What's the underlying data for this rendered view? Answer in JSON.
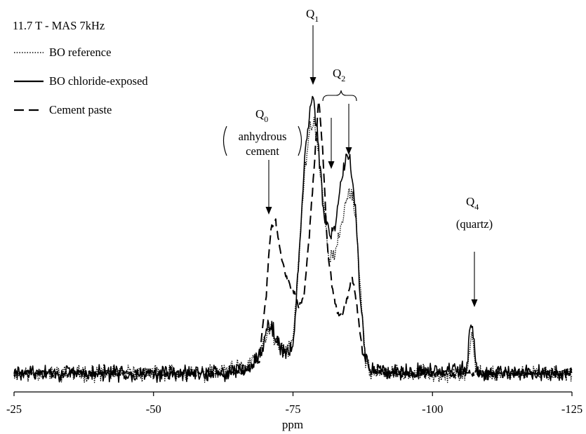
{
  "chart_data": {
    "type": "line",
    "title": "",
    "xlabel": "ppm",
    "ylabel": "",
    "x_axis_reversed": true,
    "xlim": [
      -25,
      -125
    ],
    "ylim": [
      0,
      100
    ],
    "x_ticks": [
      -25,
      -50,
      -75,
      -100,
      -125
    ],
    "x_tick_labels": [
      "-25",
      "-50",
      "-75",
      "-100",
      "-125"
    ],
    "legend_placement": "top-left",
    "legend_header": "11.7 T - MAS 7kHz",
    "noise_amplitude": 2.2,
    "series": [
      {
        "name": "BO reference",
        "line_style": "dotted",
        "color": "#000000",
        "points": [
          [
            -25,
            3
          ],
          [
            -60,
            3
          ],
          [
            -66,
            5
          ],
          [
            -69,
            9
          ],
          [
            -70.5,
            17
          ],
          [
            -71,
            19
          ],
          [
            -71.6,
            15
          ],
          [
            -72.5,
            12
          ],
          [
            -73.5,
            10
          ],
          [
            -75,
            14
          ],
          [
            -76,
            40
          ],
          [
            -77,
            70
          ],
          [
            -78,
            87
          ],
          [
            -78.8,
            89
          ],
          [
            -79.5,
            80
          ],
          [
            -80.5,
            60
          ],
          [
            -81.5,
            43
          ],
          [
            -82.5,
            43
          ],
          [
            -83.5,
            52
          ],
          [
            -84.5,
            62
          ],
          [
            -85.5,
            66
          ],
          [
            -86.3,
            56
          ],
          [
            -87.2,
            28
          ],
          [
            -88,
            8
          ],
          [
            -89,
            3
          ],
          [
            -106,
            3
          ],
          [
            -106.7,
            10
          ],
          [
            -107,
            16
          ],
          [
            -107.4,
            10
          ],
          [
            -108,
            3
          ],
          [
            -125,
            3
          ]
        ]
      },
      {
        "name": "BO chloride-exposed",
        "line_style": "solid",
        "color": "#000000",
        "points": [
          [
            -25,
            3
          ],
          [
            -62,
            3
          ],
          [
            -67,
            5
          ],
          [
            -69.5,
            11
          ],
          [
            -70.5,
            19
          ],
          [
            -71,
            21
          ],
          [
            -71.6,
            17
          ],
          [
            -72.5,
            12
          ],
          [
            -73.5,
            10
          ],
          [
            -75,
            12
          ],
          [
            -76,
            40
          ],
          [
            -77,
            75
          ],
          [
            -78,
            93
          ],
          [
            -78.6,
            98
          ],
          [
            -79.3,
            86
          ],
          [
            -80.5,
            58
          ],
          [
            -81.5,
            50
          ],
          [
            -82.5,
            52
          ],
          [
            -83.5,
            68
          ],
          [
            -84.5,
            77
          ],
          [
            -85.3,
            76
          ],
          [
            -86.2,
            60
          ],
          [
            -87,
            30
          ],
          [
            -88,
            9
          ],
          [
            -89,
            4
          ],
          [
            -106.2,
            4
          ],
          [
            -106.6,
            16
          ],
          [
            -107,
            22
          ],
          [
            -107.4,
            14
          ],
          [
            -108,
            3
          ],
          [
            -125,
            3
          ]
        ]
      },
      {
        "name": "Cement paste",
        "line_style": "dashed",
        "color": "#000000",
        "points": [
          [
            -25,
            3
          ],
          [
            -66,
            3
          ],
          [
            -69,
            8
          ],
          [
            -70.2,
            30
          ],
          [
            -71,
            52
          ],
          [
            -71.8,
            56
          ],
          [
            -72.5,
            48
          ],
          [
            -73.2,
            40
          ],
          [
            -74.2,
            34
          ],
          [
            -75.2,
            30
          ],
          [
            -76,
            26
          ],
          [
            -77,
            30
          ],
          [
            -78,
            52
          ],
          [
            -79,
            80
          ],
          [
            -79.6,
            97
          ],
          [
            -80.3,
            80
          ],
          [
            -81.2,
            45
          ],
          [
            -82.2,
            30
          ],
          [
            -83.2,
            23
          ],
          [
            -84,
            24
          ],
          [
            -84.8,
            30
          ],
          [
            -85.6,
            36
          ],
          [
            -86.5,
            25
          ],
          [
            -87.5,
            10
          ],
          [
            -89,
            3
          ],
          [
            -125,
            3
          ]
        ]
      }
    ],
    "annotations": [
      {
        "label": "Q",
        "sub": "0"
      },
      {
        "label": "anhydrous"
      },
      {
        "label": "cement"
      },
      {
        "label": "Q",
        "sub": "1"
      },
      {
        "label": "Q",
        "sub": "2"
      },
      {
        "label": "Q",
        "sub": "4"
      },
      {
        "label": "(quartz)"
      }
    ]
  }
}
